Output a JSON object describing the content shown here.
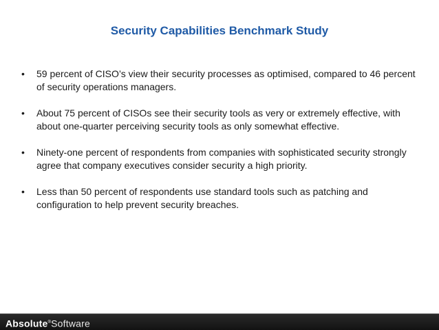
{
  "slide": {
    "title": "Security Capabilities Benchmark Study",
    "bullet_symbol": "•",
    "bullets": [
      "59 percent of CISO’s view their security processes as optimised, compared to 46 percent of security operations managers.",
      "About 75 percent of CISOs see their security tools as very or extremely effective, with about one-quarter perceiving security tools as only somewhat effective.",
      "Ninety-one percent of respondents from companies with sophisticated security strongly agree that company executives consider security a high priority.",
      "Less than 50 percent of respondents use standard tools such as patching and configuration to help prevent security breaches."
    ]
  },
  "footer": {
    "logo_part1": "Absolute",
    "logo_mark": "®",
    "logo_part2": "Software"
  },
  "colors": {
    "title": "#1f5aa6",
    "body_text": "#1a1a1a",
    "footer_bar": "#1a1a1a",
    "logo_text": "#ffffff"
  }
}
